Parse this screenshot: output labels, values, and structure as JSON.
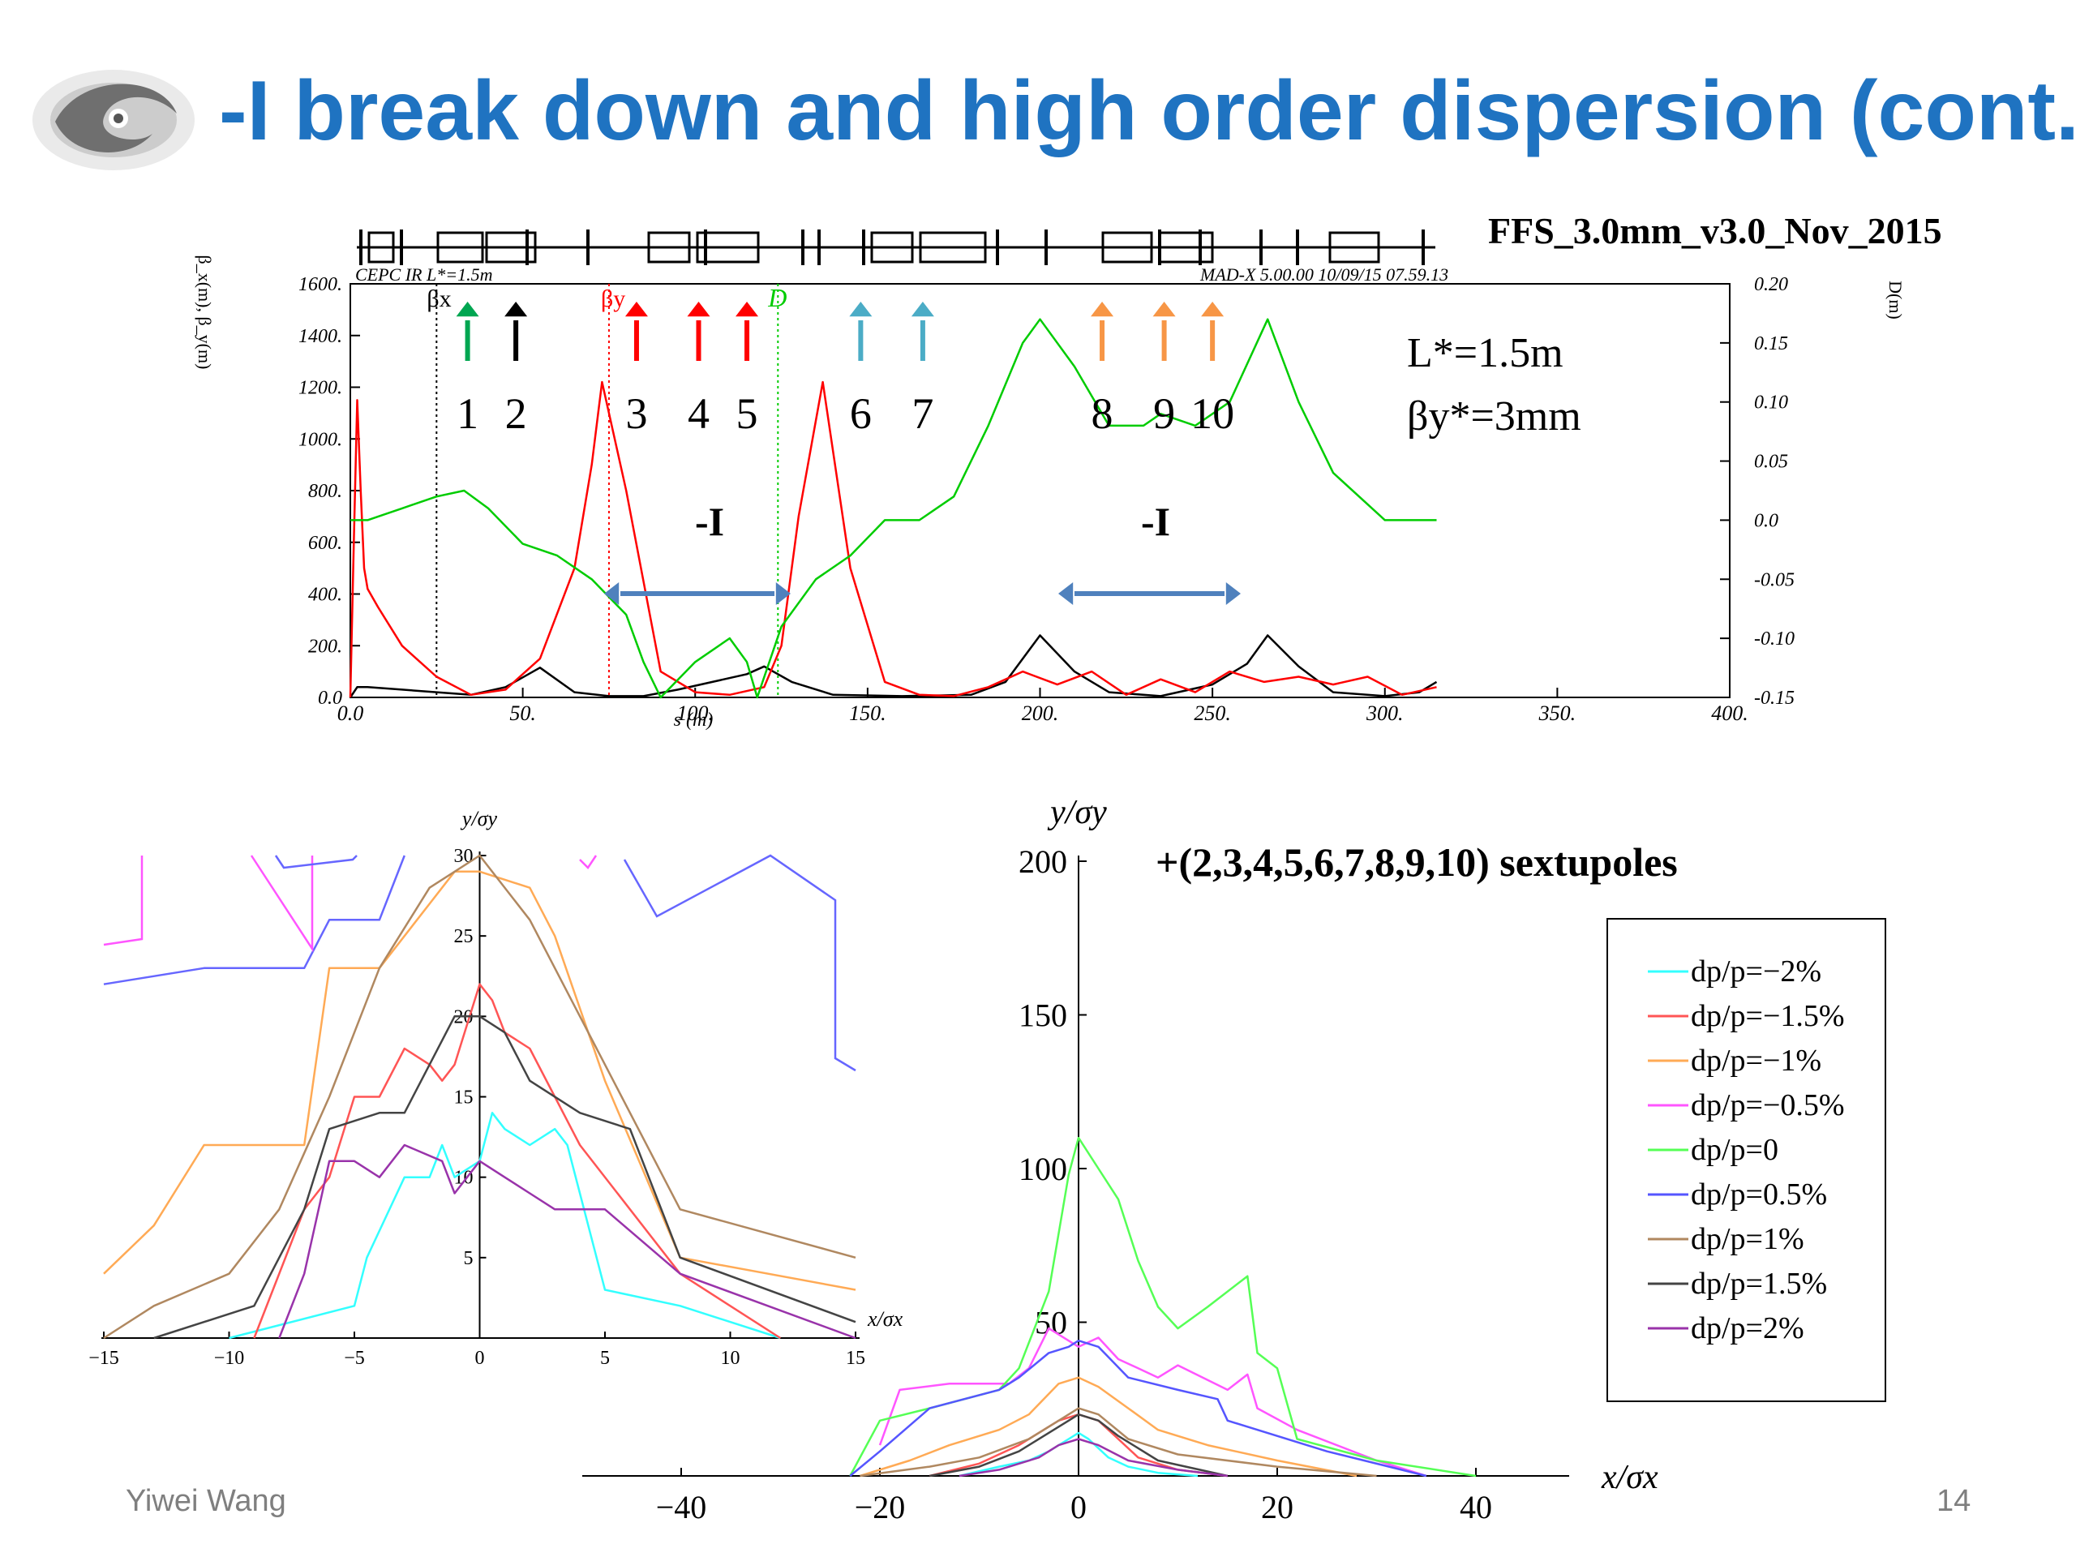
{
  "slide": {
    "title": "-I break down and high order dispersion (cont.)",
    "author": "Yiwei Wang",
    "page": "14"
  },
  "colors": {
    "title": "#1f73c1",
    "beta_x": "#000000",
    "beta_y": "#ff0000",
    "dispersion": "#00cc00",
    "arrow_blue": "#4f81bd"
  },
  "top_plot": {
    "file_label": "FFS_3.0mm_v3.0_Nov_2015",
    "header_left": "CEPC IR L*=1.5m",
    "header_right": "MAD-X 5.00.00  10/09/15 07.59.13",
    "ylabel_left": "β_x(m), β_y(m)",
    "ylabel_right": "D(m)",
    "xlabel": "s (m)",
    "info_lstar": "L*=1.5m",
    "info_beta": "βy*=3mm",
    "neg_identity": "-I",
    "legend_bx": "βx",
    "legend_by": "βy",
    "legend_d": "D",
    "yticks_left": [
      "0.0",
      "200.",
      "400.",
      "600.",
      "800.",
      "1000.",
      "1200.",
      "1400.",
      "1600."
    ],
    "yticks_right": [
      "-0.15",
      "-0.10",
      "-0.05",
      "0.0",
      "0.05",
      "0.10",
      "0.15",
      "0.20"
    ],
    "xticks": [
      "0.0",
      "50.",
      "100.",
      "150.",
      "200.",
      "250.",
      "300.",
      "350.",
      "400."
    ],
    "sextupoles": [
      {
        "label": "1",
        "s": 34,
        "color": "#00a651"
      },
      {
        "label": "2",
        "s": 48,
        "color": "#000000"
      },
      {
        "label": "3",
        "s": 83,
        "color": "#ff0000"
      },
      {
        "label": "4",
        "s": 101,
        "color": "#ff0000"
      },
      {
        "label": "5",
        "s": 115,
        "color": "#ff0000"
      },
      {
        "label": "6",
        "s": 148,
        "color": "#4bacc6"
      },
      {
        "label": "7",
        "s": 166,
        "color": "#4bacc6"
      },
      {
        "label": "8",
        "s": 218,
        "color": "#f79646"
      },
      {
        "label": "9",
        "s": 236,
        "color": "#f79646"
      },
      {
        "label": "10",
        "s": 250,
        "color": "#f79646"
      }
    ]
  },
  "bottom_left": {
    "xlabel": "x/σx",
    "ylabel": "y/σy",
    "xticks": [
      "-15",
      "-10",
      "-5",
      "0",
      "5",
      "10",
      "15"
    ],
    "yticks": [
      "5",
      "10",
      "15",
      "20",
      "25",
      "30"
    ]
  },
  "bottom_right": {
    "annotation": "+(2,3,4,5,6,7,8,9,10) sextupoles",
    "xlabel": "x/σx",
    "ylabel": "y/σy",
    "xticks": [
      "-40",
      "-20",
      "0",
      "20",
      "40"
    ],
    "yticks": [
      "50",
      "100",
      "150",
      "200"
    ]
  },
  "chart_data": [
    {
      "type": "line",
      "title": "FFS_3.0mm_v3.0_Nov_2015",
      "xlabel": "s (m)",
      "ylabel": "β_x(m), β_y(m)",
      "y2label": "D(m)",
      "xlim": [
        0,
        400
      ],
      "ylim": [
        0,
        1600
      ],
      "y2lim": [
        -0.15,
        0.2
      ],
      "grid": false,
      "series": [
        {
          "name": "βx",
          "color": "#000000",
          "axis": "left",
          "x": [
            0,
            2,
            5,
            15,
            25,
            35,
            45,
            55,
            65,
            75,
            85,
            95,
            105,
            115,
            120,
            128,
            140,
            160,
            180,
            190,
            200,
            210,
            220,
            235,
            250,
            260,
            266,
            275,
            285,
            300,
            310,
            315
          ],
          "y": [
            0,
            40,
            40,
            30,
            20,
            10,
            40,
            115,
            20,
            5,
            5,
            30,
            60,
            90,
            120,
            60,
            10,
            5,
            10,
            60,
            240,
            100,
            20,
            5,
            50,
            130,
            240,
            120,
            20,
            5,
            20,
            60
          ]
        },
        {
          "name": "βy",
          "color": "#ff0000",
          "axis": "left",
          "x": [
            0,
            1,
            2,
            3,
            4,
            5,
            8,
            15,
            25,
            35,
            45,
            55,
            65,
            70,
            73,
            80,
            90,
            100,
            110,
            120,
            125,
            130,
            137,
            145,
            155,
            165,
            175,
            185,
            195,
            205,
            215,
            225,
            235,
            245,
            255,
            265,
            275,
            285,
            295,
            305,
            315
          ],
          "y": [
            0,
            600,
            1150,
            800,
            500,
            420,
            350,
            200,
            80,
            10,
            30,
            150,
            500,
            900,
            1220,
            800,
            100,
            20,
            10,
            40,
            200,
            700,
            1220,
            500,
            60,
            10,
            5,
            40,
            100,
            50,
            100,
            10,
            70,
            20,
            100,
            60,
            80,
            50,
            80,
            10,
            40
          ]
        },
        {
          "name": "D",
          "color": "#00cc00",
          "axis": "right",
          "x": [
            0,
            5,
            15,
            25,
            33,
            40,
            50,
            60,
            70,
            80,
            85,
            90,
            100,
            110,
            115,
            118,
            125,
            135,
            145,
            155,
            165,
            175,
            185,
            195,
            200,
            210,
            220,
            230,
            235,
            245,
            255,
            266,
            275,
            285,
            300,
            315
          ],
          "y": [
            0.0,
            0.0,
            0.01,
            0.02,
            0.025,
            0.01,
            -0.02,
            -0.03,
            -0.05,
            -0.08,
            -0.12,
            -0.15,
            -0.12,
            -0.1,
            -0.12,
            -0.15,
            -0.09,
            -0.05,
            -0.03,
            0.0,
            0.0,
            0.02,
            0.08,
            0.15,
            0.17,
            0.13,
            0.08,
            0.08,
            0.09,
            0.08,
            0.1,
            0.17,
            0.1,
            0.04,
            0.0,
            0.0
          ]
        }
      ]
    },
    {
      "type": "line",
      "xlabel": "x/σx",
      "ylabel": "y/σy",
      "xlim": [
        -15,
        15
      ],
      "ylim": [
        0,
        30
      ],
      "series": [
        {
          "name": "dp/p=−2%",
          "color": "#33ffff",
          "x": [
            -10,
            -5,
            -4.5,
            -3,
            -2,
            -1.5,
            -1,
            0,
            0.5,
            1,
            2,
            3,
            3.5,
            5,
            8,
            12
          ],
          "y": [
            0,
            2,
            5,
            10,
            10,
            12,
            10,
            11,
            14,
            13,
            12,
            13,
            12,
            3,
            2,
            0
          ]
        },
        {
          "name": "dp/p=−1.5%",
          "color": "#ff5555",
          "x": [
            -9,
            -7,
            -6,
            -5,
            -4,
            -3,
            -2,
            -1.5,
            -1,
            0,
            0.5,
            1,
            2,
            3,
            4,
            8,
            12
          ],
          "y": [
            0,
            8,
            10,
            15,
            15,
            18,
            17,
            16,
            17,
            22,
            21,
            19,
            18,
            15,
            12,
            4,
            0
          ]
        },
        {
          "name": "dp/p=−1%",
          "color": "#ffaa55",
          "x": [
            -15,
            -13,
            -11,
            -7,
            -6,
            -4,
            -2,
            -1,
            0,
            2,
            3,
            5,
            8,
            15
          ],
          "y": [
            4,
            7,
            12,
            12,
            23,
            23,
            27,
            29,
            29,
            28,
            25,
            16,
            5,
            3
          ]
        },
        {
          "name": "dp/p=0.5%",
          "color": "#6666ff",
          "x": [
            -15,
            -11,
            -7,
            -6,
            -4,
            -3
          ],
          "y": [
            22,
            23,
            23,
            26,
            26,
            30
          ]
        },
        {
          "name": "dp/p=1%",
          "color": "#b08860",
          "x": [
            -15,
            -13,
            -10,
            -8,
            -6,
            -4,
            -2,
            0,
            2,
            4,
            6,
            8,
            15
          ],
          "y": [
            0,
            2,
            4,
            8,
            15,
            23,
            28,
            30,
            26,
            20,
            14,
            8,
            5
          ]
        },
        {
          "name": "dp/p=1.5%",
          "color": "#444444",
          "x": [
            -13,
            -9,
            -7,
            -6,
            -4,
            -3,
            -2,
            -1,
            0,
            1,
            2,
            4,
            6,
            8,
            15
          ],
          "y": [
            0,
            2,
            8,
            13,
            14,
            14,
            17,
            20,
            20,
            19,
            16,
            14,
            13,
            5,
            1
          ]
        },
        {
          "name": "dp/p=2%",
          "color": "#9933aa",
          "x": [
            -8,
            -7,
            -6,
            -5,
            -4,
            -3,
            -1.5,
            -1,
            0,
            1,
            2,
            3,
            5,
            8,
            15
          ],
          "y": [
            0,
            4,
            11,
            11,
            10,
            12,
            11,
            9,
            11,
            10,
            9,
            8,
            8,
            4,
            0
          ]
        }
      ]
    },
    {
      "type": "line",
      "xlabel": "x/σx",
      "ylabel": "y/σy",
      "xlim": [
        -50,
        50
      ],
      "ylim": [
        0,
        200
      ],
      "legend": "right",
      "series": [
        {
          "name": "dp/p=−2%",
          "color": "#33ffff",
          "x": [
            -12,
            -8,
            -5,
            -3,
            -1,
            0,
            1,
            3,
            5,
            8,
            12
          ],
          "y": [
            0,
            3,
            5,
            8,
            12,
            14,
            12,
            6,
            3,
            1,
            0
          ]
        },
        {
          "name": "dp/p=−1.5%",
          "color": "#ff5555",
          "x": [
            -15,
            -10,
            -6,
            -4,
            -2,
            0,
            2,
            4,
            6,
            10,
            15
          ],
          "y": [
            0,
            4,
            10,
            14,
            18,
            20,
            18,
            12,
            6,
            2,
            0
          ]
        },
        {
          "name": "dp/p=−1%",
          "color": "#ffaa55",
          "x": [
            -22,
            -17,
            -13,
            -8,
            -5,
            -2,
            0,
            2,
            5,
            8,
            13,
            20,
            28
          ],
          "y": [
            0,
            5,
            10,
            15,
            20,
            30,
            32,
            29,
            22,
            15,
            10,
            5,
            0
          ]
        },
        {
          "name": "dp/p=−0.5%",
          "color": "#ff55ff",
          "x": [
            -20,
            -18,
            -13,
            -7,
            -5,
            -3,
            0,
            2,
            4,
            6,
            8,
            10,
            15,
            17,
            18,
            22,
            30,
            35
          ],
          "y": [
            10,
            28,
            30,
            30,
            35,
            48,
            42,
            45,
            38,
            35,
            32,
            36,
            28,
            33,
            22,
            15,
            5,
            0
          ]
        },
        {
          "name": "dp/p=0",
          "color": "#55ff55",
          "x": [
            -23,
            -20,
            -15,
            -8,
            -6,
            -3,
            -1,
            0,
            2,
            4,
            6,
            8,
            10,
            13,
            17,
            18,
            20,
            22,
            30,
            40
          ],
          "y": [
            0,
            18,
            22,
            28,
            35,
            60,
            98,
            110,
            100,
            90,
            70,
            55,
            48,
            55,
            65,
            40,
            35,
            12,
            5,
            0
          ]
        },
        {
          "name": "dp/p=0.5%",
          "color": "#5555ff",
          "x": [
            -23,
            -20,
            -15,
            -8,
            -6,
            -3,
            -1,
            0,
            2,
            5,
            10,
            14,
            15,
            25,
            35
          ],
          "y": [
            0,
            8,
            22,
            28,
            32,
            40,
            42,
            44,
            42,
            32,
            28,
            25,
            18,
            8,
            0
          ]
        },
        {
          "name": "dp/p=1%",
          "color": "#b08860",
          "x": [
            -22,
            -15,
            -10,
            -5,
            -2,
            0,
            2,
            5,
            10,
            20,
            30
          ],
          "y": [
            0,
            3,
            6,
            12,
            18,
            22,
            20,
            12,
            7,
            3,
            0
          ]
        },
        {
          "name": "dp/p=1.5%",
          "color": "#444444",
          "x": [
            -15,
            -10,
            -6,
            -3,
            -1,
            0,
            2,
            4,
            8,
            15
          ],
          "y": [
            0,
            3,
            8,
            14,
            18,
            20,
            18,
            13,
            5,
            0
          ]
        },
        {
          "name": "dp/p=2%",
          "color": "#9933aa",
          "x": [
            -12,
            -8,
            -4,
            -2,
            0,
            2,
            5,
            10,
            15
          ],
          "y": [
            0,
            2,
            6,
            10,
            12,
            10,
            5,
            2,
            0
          ]
        }
      ]
    }
  ]
}
